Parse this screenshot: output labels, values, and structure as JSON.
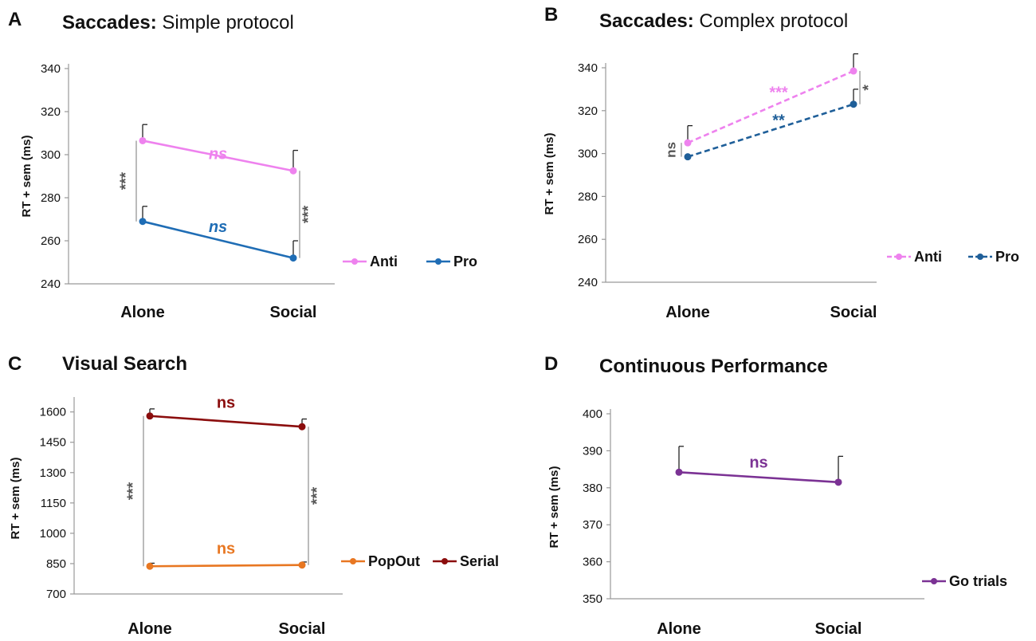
{
  "chart_data": [
    {
      "type": "line",
      "panel_letter": "A",
      "title_bold": "Saccades:",
      "title_rest": " Simple protocol",
      "ylabel": "RT + sem (ms)",
      "xlabel": "",
      "categories": [
        "Alone",
        "Social"
      ],
      "ylim": [
        240,
        340
      ],
      "yticks": [
        240,
        260,
        280,
        300,
        320,
        340
      ],
      "series": [
        {
          "name": "Anti",
          "values": [
            306.5,
            292.5
          ],
          "errors": [
            7.5,
            9.5
          ],
          "color": "#ee82ee",
          "dashed": false,
          "label": "ns",
          "label_italic": true,
          "label_value": 298
        },
        {
          "name": "Pro",
          "values": [
            269,
            252
          ],
          "errors": [
            7,
            8
          ],
          "color": "#1f6db5",
          "dashed": false,
          "label": "ns",
          "label_italic": true,
          "label_value": 264
        }
      ],
      "brackets": [
        {
          "index": 0,
          "from": 269,
          "to": 306.5,
          "label": "***",
          "side": "left"
        },
        {
          "index": 1,
          "from": 252,
          "to": 292.5,
          "label": "***",
          "side": "right"
        }
      ]
    },
    {
      "type": "line",
      "panel_letter": "B",
      "title_bold": "Saccades:",
      "title_rest": " Complex protocol",
      "ylabel": "RT + sem (ms)",
      "xlabel": "",
      "categories": [
        "Alone",
        "Social"
      ],
      "ylim": [
        240,
        340
      ],
      "yticks": [
        240,
        260,
        280,
        300,
        320,
        340
      ],
      "series": [
        {
          "name": "Anti",
          "values": [
            305,
            338.5
          ],
          "errors": [
            8,
            8
          ],
          "color": "#ee82ee",
          "dashed": true,
          "label": "***",
          "label_italic": false,
          "label_value": 326
        },
        {
          "name": "Pro",
          "values": [
            298.5,
            323
          ],
          "errors": [
            0,
            7
          ],
          "color": "#1f5f99",
          "dashed": true,
          "label": "**",
          "label_italic": false,
          "label_value": 313
        }
      ],
      "brackets": [
        {
          "index": 0,
          "from": 298.5,
          "to": 305,
          "label": "ns",
          "side": "left"
        },
        {
          "index": 1,
          "from": 323,
          "to": 338.5,
          "label": "*",
          "side": "right"
        }
      ]
    },
    {
      "type": "line",
      "panel_letter": "C",
      "title_bold": "Visual Search",
      "title_rest": "",
      "ylabel": "RT + sem (ms)",
      "xlabel": "",
      "categories": [
        "Alone",
        "Social"
      ],
      "ylim": [
        700,
        1650
      ],
      "yticks": [
        700,
        850,
        1000,
        1150,
        1300,
        1450,
        1600
      ],
      "series": [
        {
          "name": "PopOut",
          "values": [
            837,
            843
          ],
          "errors": [
            15,
            15
          ],
          "color": "#e87722",
          "dashed": false,
          "label": "ns",
          "label_italic": false,
          "label_value": 900
        },
        {
          "name": "Serial",
          "values": [
            1580,
            1527
          ],
          "errors": [
            35,
            38
          ],
          "color": "#8b0d0d",
          "dashed": false,
          "label": "ns",
          "label_italic": false,
          "label_value": 1620
        }
      ],
      "brackets": [
        {
          "index": 0,
          "from": 837,
          "to": 1580,
          "label": "***",
          "side": "left"
        },
        {
          "index": 1,
          "from": 843,
          "to": 1527,
          "label": "***",
          "side": "right"
        }
      ]
    },
    {
      "type": "line",
      "panel_letter": "D",
      "title_bold": "Continuous Performance",
      "title_rest": "",
      "ylabel": "RT + sem (ms)",
      "xlabel": "",
      "categories": [
        "Alone",
        "Social"
      ],
      "ylim": [
        350,
        400
      ],
      "yticks": [
        350,
        360,
        370,
        380,
        390,
        400
      ],
      "series": [
        {
          "name": "Go trials",
          "values": [
            384.2,
            381.5
          ],
          "errors": [
            7,
            7
          ],
          "color": "#7b3294",
          "dashed": false,
          "label": "ns",
          "label_italic": false,
          "label_value": 385.5
        }
      ],
      "brackets": []
    }
  ]
}
